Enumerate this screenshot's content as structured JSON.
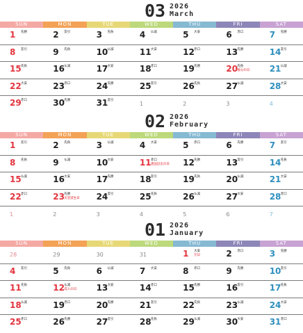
{
  "weekdays": [
    "SUN",
    "MON",
    "TUE",
    "WED",
    "THU",
    "FRI",
    "SAT"
  ],
  "colors": {
    "sunday": "#e3343e",
    "saturday": "#2f8fbf",
    "holiday": "#e3343e",
    "text": "#222222"
  },
  "months": [
    {
      "number": "03",
      "year": "2026",
      "name": "March",
      "weeks": [
        [
          {
            "d": "1",
            "rk": "先勝"
          },
          {
            "d": "2",
            "rk": "友引"
          },
          {
            "d": "3",
            "rk": "先負"
          },
          {
            "d": "4",
            "rk": "仏滅"
          },
          {
            "d": "5",
            "rk": "大安"
          },
          {
            "d": "6",
            "rk": "赤口"
          },
          {
            "d": "7",
            "rk": "先勝"
          }
        ],
        [
          {
            "d": "8",
            "rk": "友引"
          },
          {
            "d": "9",
            "rk": "先負"
          },
          {
            "d": "10",
            "rk": "仏滅"
          },
          {
            "d": "11",
            "rk": "大安"
          },
          {
            "d": "12",
            "rk": "赤口"
          },
          {
            "d": "13",
            "rk": "先勝"
          },
          {
            "d": "14",
            "rk": "友引"
          }
        ],
        [
          {
            "d": "15",
            "rk": "先負"
          },
          {
            "d": "16",
            "rk": "仏滅"
          },
          {
            "d": "17",
            "rk": "大安"
          },
          {
            "d": "18",
            "rk": "赤口"
          },
          {
            "d": "19",
            "rk": "先勝"
          },
          {
            "d": "20",
            "rk": "先負",
            "hol": "春分の日"
          },
          {
            "d": "21",
            "rk": "仏滅"
          }
        ],
        [
          {
            "d": "22",
            "rk": "大安"
          },
          {
            "d": "23",
            "rk": "赤口"
          },
          {
            "d": "24",
            "rk": "先勝"
          },
          {
            "d": "25",
            "rk": "友引"
          },
          {
            "d": "26",
            "rk": "先負"
          },
          {
            "d": "27",
            "rk": "仏滅"
          },
          {
            "d": "28",
            "rk": "大安"
          }
        ],
        [
          {
            "d": "29",
            "rk": "赤口"
          },
          {
            "d": "30",
            "rk": "先勝"
          },
          {
            "d": "31",
            "rk": "友引"
          },
          {
            "d": "1",
            "other": true
          },
          {
            "d": "2",
            "other": true
          },
          {
            "d": "3",
            "other": true
          },
          {
            "d": "4",
            "other": true
          }
        ]
      ]
    },
    {
      "number": "02",
      "year": "2026",
      "name": "February",
      "weeks": [
        [
          {
            "d": "1",
            "rk": "友引"
          },
          {
            "d": "2",
            "rk": "先負"
          },
          {
            "d": "3",
            "rk": "仏滅"
          },
          {
            "d": "4",
            "rk": "大安"
          },
          {
            "d": "5",
            "rk": "赤口"
          },
          {
            "d": "6",
            "rk": "先勝"
          },
          {
            "d": "7",
            "rk": "友引"
          }
        ],
        [
          {
            "d": "8",
            "rk": "先負"
          },
          {
            "d": "9",
            "rk": "仏滅"
          },
          {
            "d": "10",
            "rk": "大安"
          },
          {
            "d": "11",
            "rk": "赤口",
            "hol": "建国記念の日"
          },
          {
            "d": "12",
            "rk": "先勝"
          },
          {
            "d": "13",
            "rk": "友引"
          },
          {
            "d": "14",
            "rk": "先負"
          }
        ],
        [
          {
            "d": "15",
            "rk": "仏滅"
          },
          {
            "d": "16",
            "rk": "大安"
          },
          {
            "d": "17",
            "rk": "先勝"
          },
          {
            "d": "18",
            "rk": "友引"
          },
          {
            "d": "19",
            "rk": "先負"
          },
          {
            "d": "20",
            "rk": "仏滅"
          },
          {
            "d": "21",
            "rk": "大安"
          }
        ],
        [
          {
            "d": "22",
            "rk": "赤口"
          },
          {
            "d": "23",
            "rk": "先勝",
            "hol": "天皇誕生日"
          },
          {
            "d": "24",
            "rk": "友引"
          },
          {
            "d": "25",
            "rk": "先負"
          },
          {
            "d": "26",
            "rk": "仏滅"
          },
          {
            "d": "27",
            "rk": "大安"
          },
          {
            "d": "28",
            "rk": "赤口"
          }
        ],
        [
          {
            "d": "1",
            "other": true
          },
          {
            "d": "2",
            "other": true
          },
          {
            "d": "3",
            "other": true
          },
          {
            "d": "4",
            "other": true
          },
          {
            "d": "5",
            "other": true
          },
          {
            "d": "6",
            "other": true
          },
          {
            "d": "7",
            "other": true
          }
        ]
      ]
    },
    {
      "number": "01",
      "year": "2026",
      "name": "January",
      "weeks": [
        [
          {
            "d": "28",
            "other": true
          },
          {
            "d": "29",
            "other": true
          },
          {
            "d": "30",
            "other": true
          },
          {
            "d": "31",
            "other": true
          },
          {
            "d": "1",
            "rk": "大安",
            "hol": "元日"
          },
          {
            "d": "2",
            "rk": "赤口"
          },
          {
            "d": "3",
            "rk": "先勝"
          }
        ],
        [
          {
            "d": "4",
            "rk": "友引"
          },
          {
            "d": "5",
            "rk": "先負"
          },
          {
            "d": "6",
            "rk": "仏滅"
          },
          {
            "d": "7",
            "rk": "大安"
          },
          {
            "d": "8",
            "rk": "赤口"
          },
          {
            "d": "9",
            "rk": "先勝"
          },
          {
            "d": "10",
            "rk": "友引"
          }
        ],
        [
          {
            "d": "11",
            "rk": "先負"
          },
          {
            "d": "12",
            "rk": "仏滅",
            "hol": "成人の日"
          },
          {
            "d": "13",
            "rk": "大安"
          },
          {
            "d": "14",
            "rk": "赤口"
          },
          {
            "d": "15",
            "rk": "先勝"
          },
          {
            "d": "16",
            "rk": "友引"
          },
          {
            "d": "17",
            "rk": "先負"
          }
        ],
        [
          {
            "d": "18",
            "rk": "仏滅"
          },
          {
            "d": "19",
            "rk": "赤口"
          },
          {
            "d": "20",
            "rk": "先勝"
          },
          {
            "d": "21",
            "rk": "友引"
          },
          {
            "d": "22",
            "rk": "先負"
          },
          {
            "d": "23",
            "rk": "仏滅"
          },
          {
            "d": "24",
            "rk": "大安"
          }
        ],
        [
          {
            "d": "25",
            "rk": "赤口"
          },
          {
            "d": "26",
            "rk": "先勝"
          },
          {
            "d": "27",
            "rk": "友引"
          },
          {
            "d": "28",
            "rk": "先負"
          },
          {
            "d": "29",
            "rk": "仏滅"
          },
          {
            "d": "30",
            "rk": "大安"
          },
          {
            "d": "31",
            "rk": "赤口"
          }
        ]
      ]
    }
  ]
}
